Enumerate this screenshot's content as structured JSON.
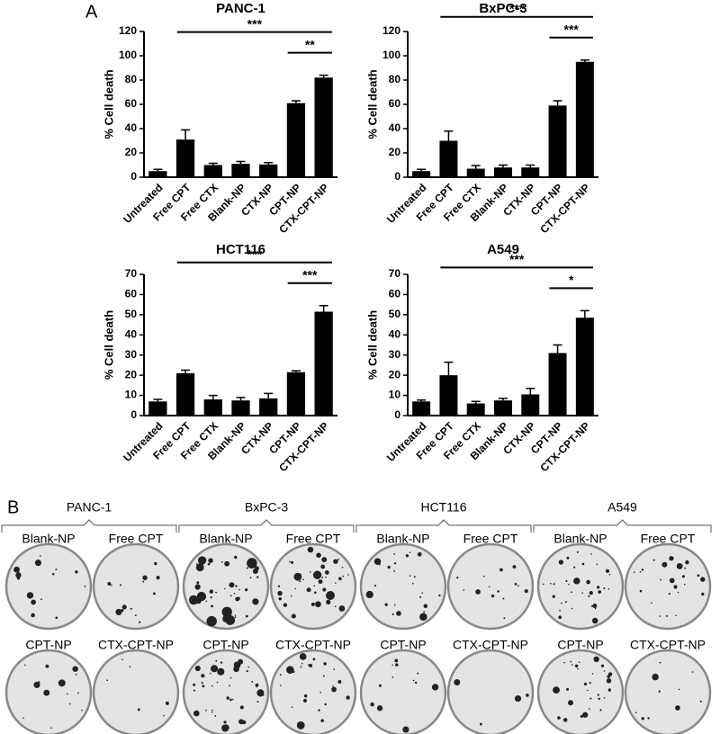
{
  "panel_a_label": "A",
  "chart_data": [
    {
      "type": "bar",
      "title": "PANC-1",
      "y_label": "% Cell death",
      "color": "#000000",
      "categories": [
        "Untreated",
        "Free CPT",
        "Free CTX",
        "Blank-NP",
        "CTX-NP",
        "CPT-NP",
        "CTX-CPT-NP"
      ],
      "values": [
        5,
        31,
        10,
        11,
        10.5,
        61,
        82
      ],
      "errors": [
        1.5,
        8,
        1.5,
        2,
        1.5,
        2,
        2
      ],
      "ylim": [
        0,
        120
      ],
      "yticks": [
        0,
        20,
        40,
        60,
        80,
        100,
        120
      ],
      "annotations": [
        {
          "text": "***",
          "from": "Free CPT",
          "to": "CTX-CPT-NP"
        },
        {
          "text": "**",
          "from": "CPT-NP",
          "to": "CTX-CPT-NP"
        }
      ]
    },
    {
      "type": "bar",
      "title": "BxPC-3",
      "y_label": "% Cell death",
      "color": "#000000",
      "categories": [
        "Untreated",
        "Free CPT",
        "Free CTX",
        "Blank-NP",
        "CTX-NP",
        "CPT-NP",
        "CTX-CPT-NP"
      ],
      "values": [
        5,
        30,
        7,
        8,
        8,
        59,
        95
      ],
      "errors": [
        1.5,
        8,
        2.5,
        2,
        2,
        4,
        1.5
      ],
      "ylim": [
        0,
        120
      ],
      "yticks": [
        0,
        20,
        40,
        60,
        80,
        100,
        120
      ],
      "annotations": [
        {
          "text": "***",
          "from": "Free CPT",
          "to": "CTX-CPT-NP"
        },
        {
          "text": "***",
          "from": "CPT-NP",
          "to": "CTX-CPT-NP"
        }
      ]
    },
    {
      "type": "bar",
      "title": "HCT116",
      "y_label": "% Cell death",
      "color": "#000000",
      "categories": [
        "Untreated",
        "Free CPT",
        "Free CTX",
        "Blank-NP",
        "CTX-NP",
        "CPT-NP",
        "CTX-CPT-NP"
      ],
      "values": [
        7,
        21,
        8,
        7.5,
        8.5,
        21.5,
        51.5
      ],
      "errors": [
        1,
        1.5,
        2,
        1.5,
        2.5,
        0.7,
        3
      ],
      "ylim": [
        0,
        70
      ],
      "yticks": [
        0,
        10,
        20,
        30,
        40,
        50,
        60,
        70
      ],
      "annotations": [
        {
          "text": "***",
          "from": "Free CPT",
          "to": "CTX-CPT-NP"
        },
        {
          "text": "***",
          "from": "CPT-NP",
          "to": "CTX-CPT-NP"
        }
      ]
    },
    {
      "type": "bar",
      "title": "A549",
      "y_label": "% Cell death",
      "color": "#000000",
      "categories": [
        "Untreated",
        "Free CPT",
        "Free CTX",
        "Blank-NP",
        "CTX-NP",
        "CPT-NP",
        "CTX-CPT-NP"
      ],
      "values": [
        7,
        20,
        6,
        7.5,
        10.5,
        31,
        48.5
      ],
      "errors": [
        0.7,
        6.5,
        1,
        1,
        3,
        4,
        3.5
      ],
      "ylim": [
        0,
        70
      ],
      "yticks": [
        0,
        10,
        20,
        30,
        40,
        50,
        60,
        70
      ],
      "annotations": [
        {
          "text": "***",
          "from": "Free CPT",
          "to": "CTX-CPT-NP"
        },
        {
          "text": "*",
          "from": "CPT-NP",
          "to": "CTX-CPT-NP"
        }
      ]
    }
  ],
  "panel_b": {
    "label": "B",
    "groups": [
      {
        "name": "PANC-1",
        "plates": [
          "Blank-NP",
          "Free CPT",
          "CPT-NP",
          "CTX-CPT-NP"
        ]
      },
      {
        "name": "BxPC-3",
        "plates": [
          "Blank-NP",
          "Free CPT",
          "CPT-NP",
          "CTX-CPT-NP"
        ]
      },
      {
        "name": "HCT116",
        "plates": [
          "Blank-NP",
          "Free CPT",
          "CPT-NP",
          "CTX-CPT-NP"
        ]
      },
      {
        "name": "A549",
        "plates": [
          "Blank-NP",
          "Free CPT",
          "CPT-NP",
          "CTX-CPT-NP"
        ]
      }
    ]
  }
}
